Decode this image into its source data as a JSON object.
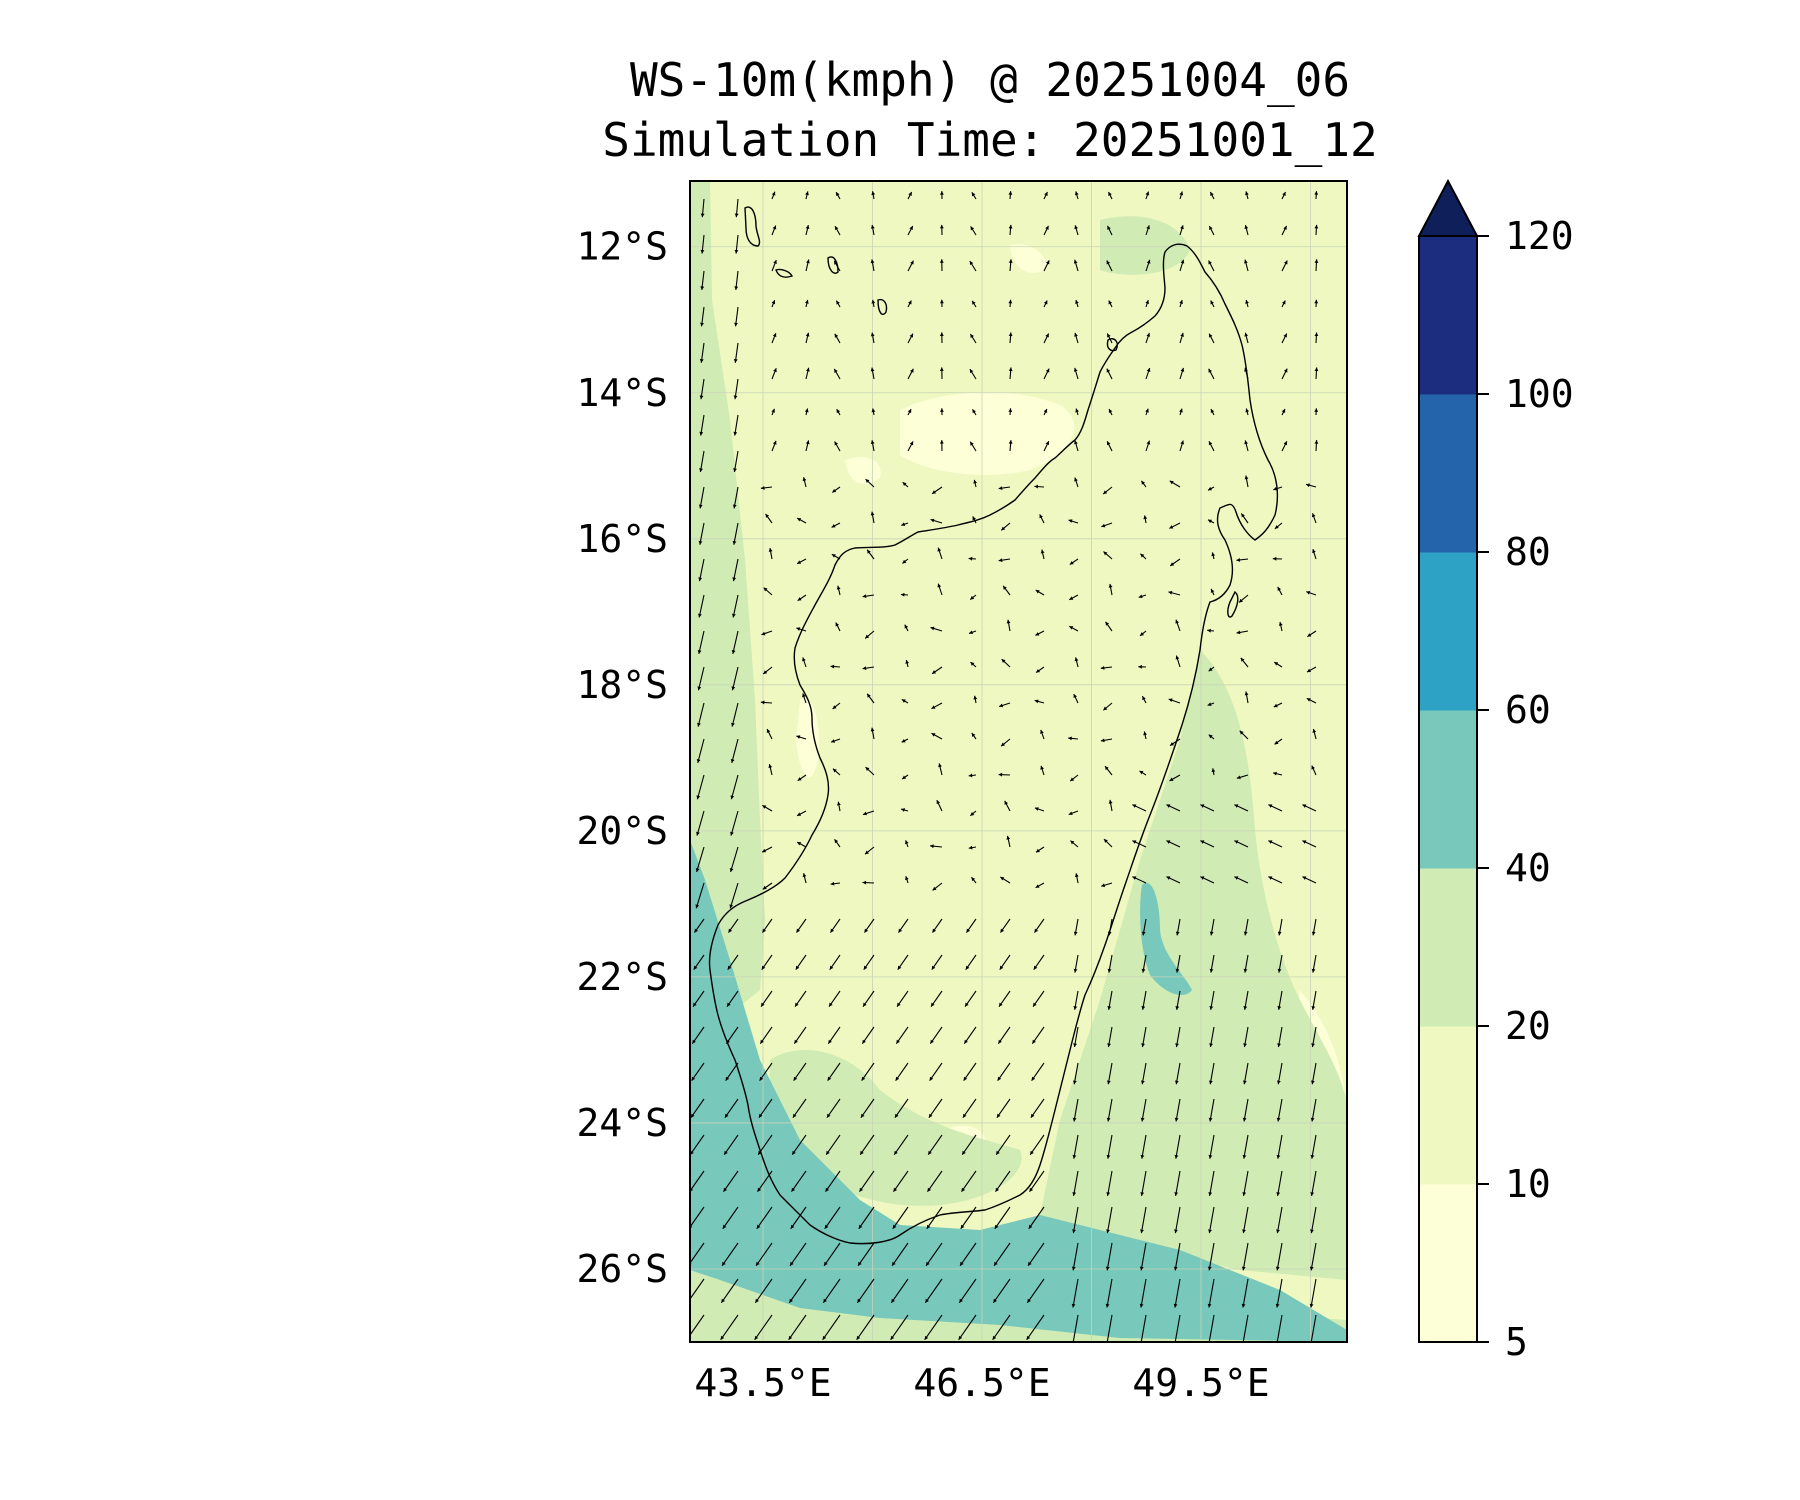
{
  "figure": {
    "title_line1": "WS-10m(kmph) @ 20251004_06",
    "title_line2": "Simulation Time: 20251001_12"
  },
  "map": {
    "lon_range": [
      42.5,
      51.5
    ],
    "lat_range": [
      -27.0,
      -11.1
    ],
    "lat_ticks": [
      {
        "value": -12,
        "label": "12°S"
      },
      {
        "value": -14,
        "label": "14°S"
      },
      {
        "value": -16,
        "label": "16°S"
      },
      {
        "value": -18,
        "label": "18°S"
      },
      {
        "value": -20,
        "label": "20°S"
      },
      {
        "value": -22,
        "label": "22°S"
      },
      {
        "value": -24,
        "label": "24°S"
      },
      {
        "value": -26,
        "label": "26°S"
      }
    ],
    "lon_ticks": [
      {
        "value": 43.5,
        "label": "43.5°E"
      },
      {
        "value": 46.5,
        "label": "46.5°E"
      },
      {
        "value": 49.5,
        "label": "49.5°E"
      }
    ],
    "grid": true,
    "background_color": "#eef8c0"
  },
  "colorbar": {
    "levels": [
      5,
      10,
      20,
      40,
      60,
      80,
      100,
      120
    ],
    "tick_labels": [
      "5",
      "10",
      "20",
      "40",
      "60",
      "80",
      "100",
      "120"
    ],
    "colors": [
      "#fdffd6",
      "#eef8c0",
      "#d0ebb3",
      "#78c8bb",
      "#2ea2c5",
      "#2464aa",
      "#1c2d80"
    ],
    "extend_color": "#0f1f5a",
    "extend": "max"
  }
}
